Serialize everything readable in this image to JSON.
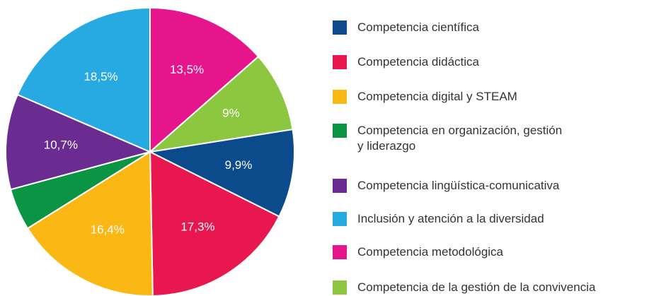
{
  "chart_data": {
    "type": "pie",
    "categories": [
      "Competencia científica",
      "Competencia didáctica",
      "Competencia digital y STEAM",
      "Competencia en organización, gestión\ny liderazgo",
      "Competencia lingüística-comunicativa",
      "Inclusión y atención a la diversidad",
      "Competencia metodológica",
      "Competencia de la gestión de la convivencia"
    ],
    "values": [
      9.9,
      17.3,
      16.4,
      4.7,
      10.7,
      18.5,
      13.5,
      9
    ],
    "value_labels": [
      "9,9%",
      "17,3%",
      "16,4%",
      null,
      "10,7%",
      "18,5%",
      "13,5%",
      "9%"
    ],
    "colors": [
      "#0b4a8b",
      "#e8174f",
      "#fbb714",
      "#0a9444",
      "#6a2c91",
      "#27aae1",
      "#e6158c",
      "#8dc63f"
    ]
  }
}
